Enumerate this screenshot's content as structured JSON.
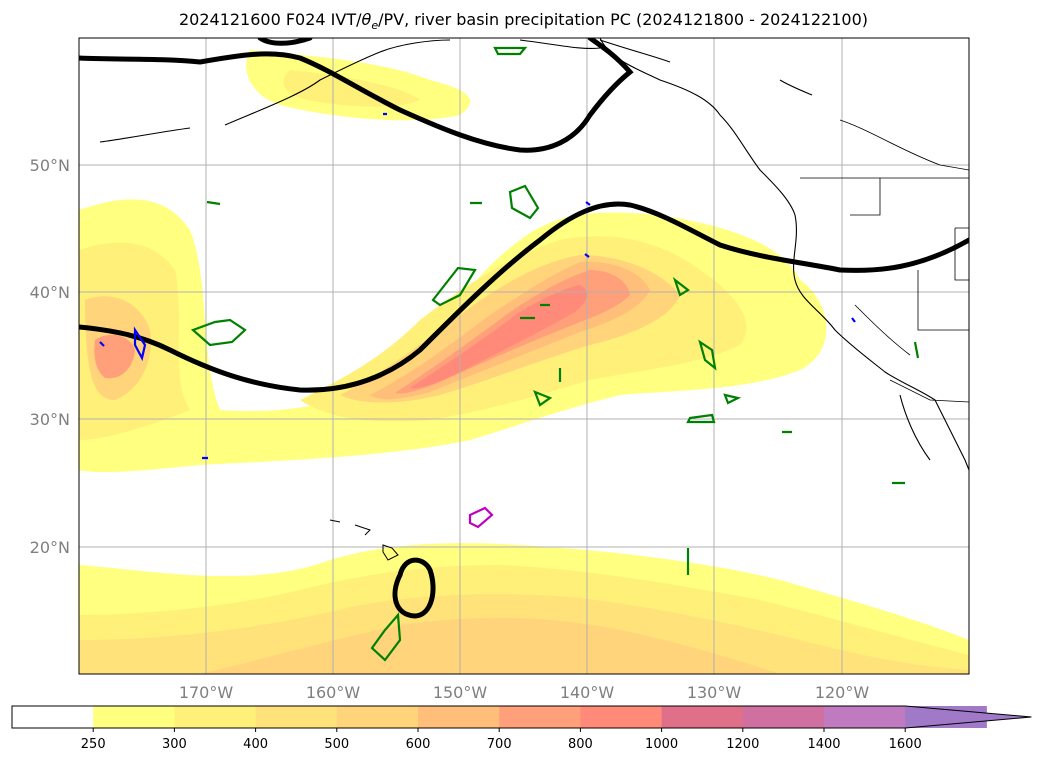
{
  "title": {
    "prefix": "2024121600 F024 IVT/",
    "theta": "θ",
    "theta_sub": "e",
    "suffix": "/PV, river basin precipitation PC (2024121800 - 2024122100)"
  },
  "map": {
    "lat_labels": [
      "50°N",
      "40°N",
      "30°N",
      "20°N"
    ],
    "lon_labels": [
      "170°W",
      "160°W",
      "150°W",
      "140°W",
      "130°W",
      "120°W"
    ],
    "label_color": "#7f7f7f",
    "grid_color": "#b0b0b0",
    "coastline_color": "#000000",
    "theta_e_contour_color": "#000000",
    "pv_contour_colors": [
      "#008000",
      "#0000ff",
      "#c000c0"
    ]
  },
  "colorbar": {
    "tick_labels": [
      "250",
      "300",
      "400",
      "500",
      "600",
      "700",
      "800",
      "1000",
      "1200",
      "1400",
      "1600"
    ],
    "colors": [
      "#ffffff",
      "#ffff80",
      "#fff07a",
      "#ffe27a",
      "#ffd47a",
      "#ffbe7a",
      "#ffa07a",
      "#ff8a7a",
      "#e0708a",
      "#d070a0",
      "#c07ac0",
      "#a07ac8"
    ]
  }
}
